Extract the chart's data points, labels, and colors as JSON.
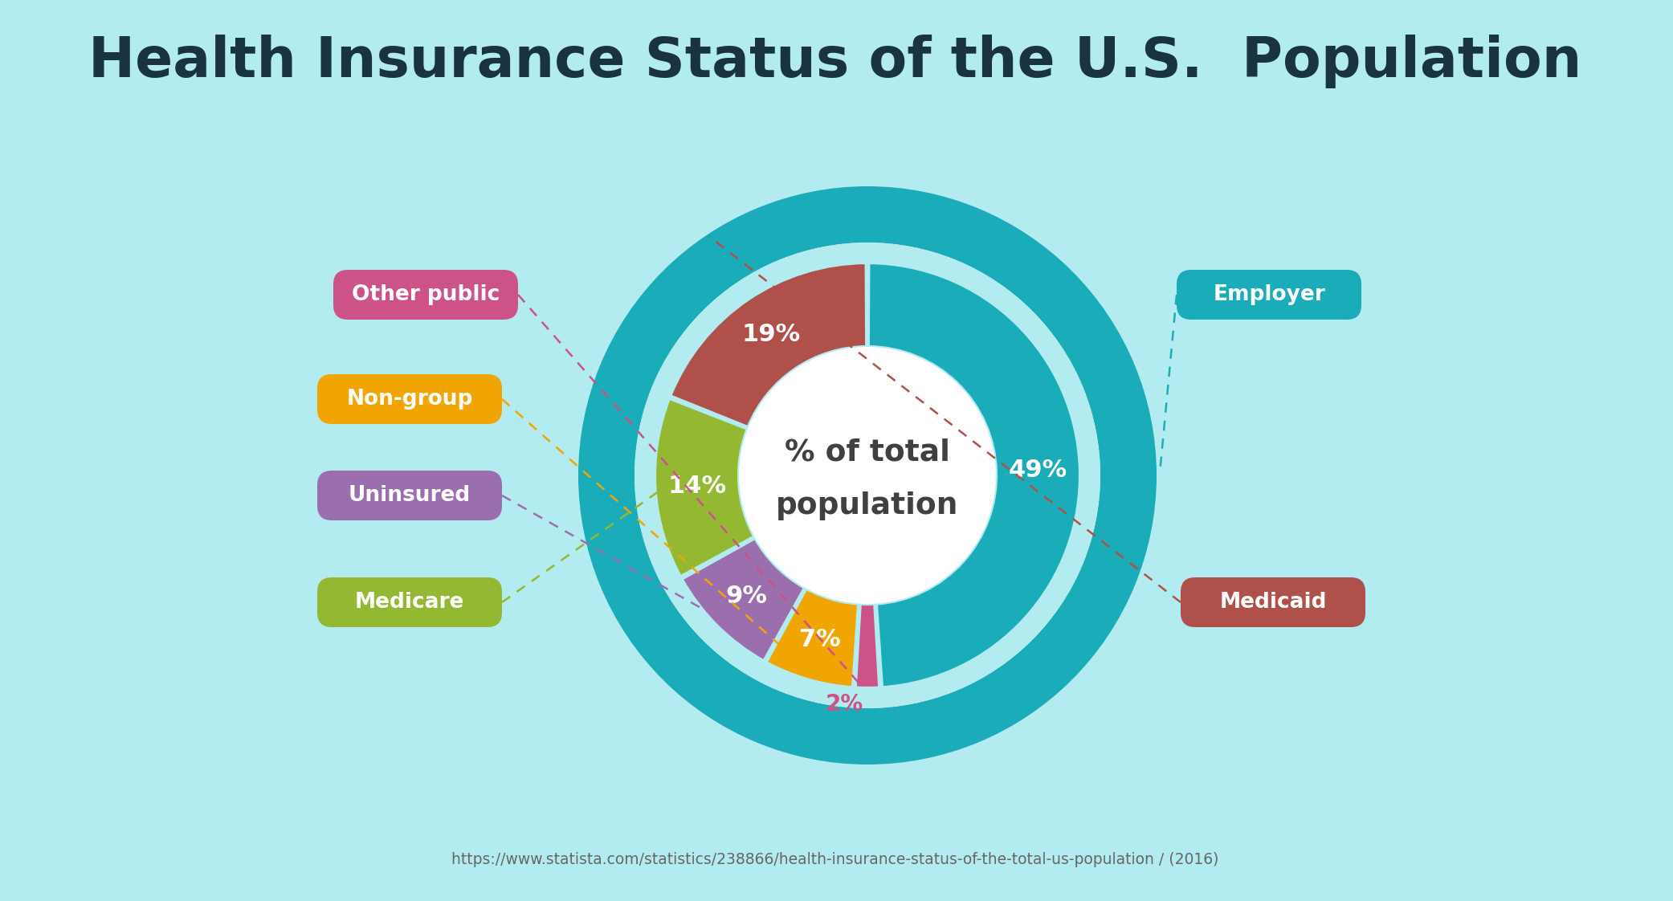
{
  "title": "Health Insurance Status of the U.S.  Population",
  "source": "https://www.statista.com/statistics/238866/health-insurance-status-of-the-total-us-population / (2016)",
  "background_color": "#b3ecf0",
  "center_text_line1": "% of total",
  "center_text_line2": "population",
  "segments": [
    {
      "label": "Employer",
      "value": 49,
      "color": "#1aacb8",
      "pct_text": "49%",
      "text_color": "#ffffff"
    },
    {
      "label": "Other public",
      "value": 2,
      "color": "#cc5288",
      "pct_text": "2%",
      "text_color": "#cc5288"
    },
    {
      "label": "Non-group",
      "value": 7,
      "color": "#f0a500",
      "pct_text": "7%",
      "text_color": "#ffffff"
    },
    {
      "label": "Uninsured",
      "value": 9,
      "color": "#9b6fad",
      "pct_text": "9%",
      "text_color": "#ffffff"
    },
    {
      "label": "Medicare",
      "value": 14,
      "color": "#95b832",
      "pct_text": "14%",
      "text_color": "#ffffff"
    },
    {
      "label": "Medicaid",
      "value": 19,
      "color": "#b0504a",
      "pct_text": "19%",
      "text_color": "#ffffff"
    }
  ],
  "left_legend": [
    {
      "label": "Other public",
      "color": "#cc5288",
      "line_color": "#cc5288"
    },
    {
      "label": "Non-group",
      "color": "#f0a500",
      "line_color": "#f0a500"
    },
    {
      "label": "Uninsured",
      "color": "#9b6fad",
      "line_color": "#9b6fad"
    },
    {
      "label": "Medicare",
      "color": "#95b832",
      "line_color": "#95b832"
    }
  ],
  "right_legend": [
    {
      "label": "Employer",
      "color": "#1aacb8",
      "line_color": "#1aacb8"
    },
    {
      "label": "Medicaid",
      "color": "#b0504a",
      "line_color": "#b0504a"
    }
  ]
}
